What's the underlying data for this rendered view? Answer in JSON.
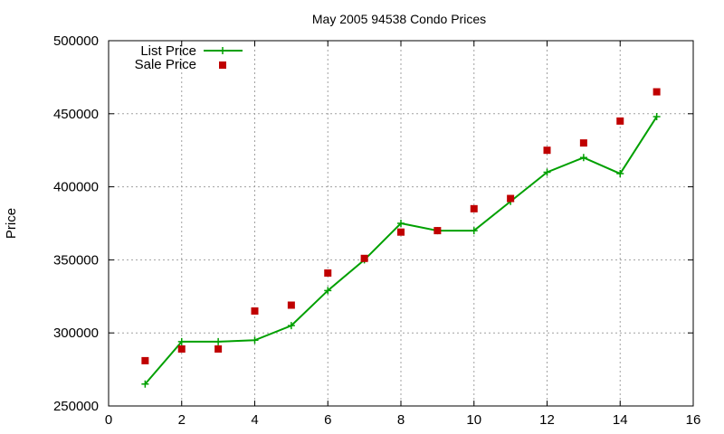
{
  "chart_data": {
    "type": "line",
    "title": "May 2005 94538 Condo Prices",
    "xlabel": "",
    "ylabel": "Price",
    "xlim": [
      0,
      16
    ],
    "ylim": [
      250000,
      500000
    ],
    "xticks": [
      0,
      2,
      4,
      6,
      8,
      10,
      12,
      14,
      16
    ],
    "yticks": [
      250000,
      300000,
      350000,
      400000,
      450000,
      500000
    ],
    "grid": true,
    "legend_position": "top-left",
    "series": [
      {
        "name": "List Price",
        "style": "line+cross",
        "color": "#00a000",
        "x": [
          1,
          2,
          3,
          4,
          5,
          6,
          7,
          8,
          9,
          10,
          11,
          12,
          13,
          14,
          15
        ],
        "y": [
          265000,
          294000,
          294000,
          295000,
          305000,
          329000,
          350000,
          375000,
          370000,
          370000,
          390000,
          410000,
          420000,
          409000,
          448000
        ]
      },
      {
        "name": "Sale Price",
        "style": "square",
        "color": "#c00000",
        "x": [
          1,
          2,
          3,
          4,
          5,
          6,
          7,
          8,
          9,
          10,
          11,
          12,
          13,
          14,
          15
        ],
        "y": [
          281000,
          289000,
          289000,
          315000,
          319000,
          341000,
          351000,
          369000,
          370000,
          385000,
          392000,
          425000,
          430000,
          445000,
          465000
        ]
      }
    ]
  }
}
